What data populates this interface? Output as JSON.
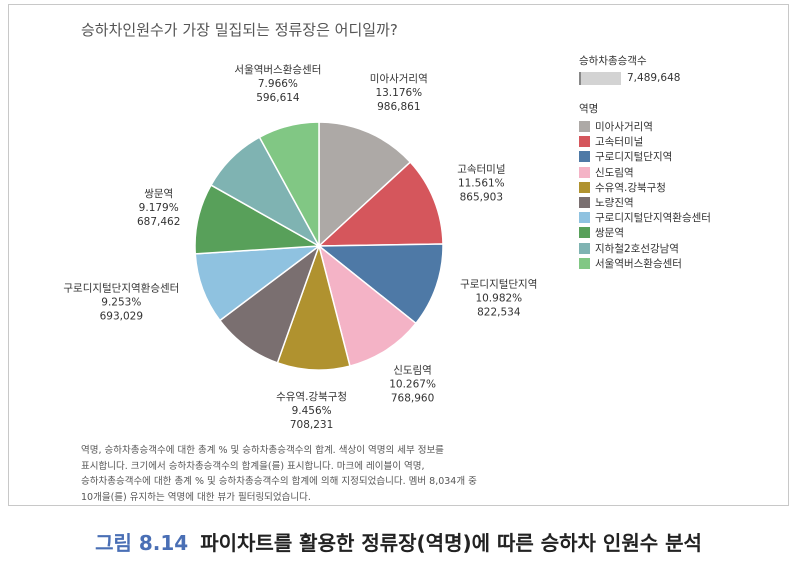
{
  "title": "승하차인원수가 가장 밀집되는 정류장은 어디일까?",
  "size_legend": {
    "title": "승하차총승객수",
    "value": "7,489,648"
  },
  "legend": {
    "title": "역명",
    "items": [
      {
        "label": "미아사거리역",
        "color": "#ada9a6"
      },
      {
        "label": "고속터미널",
        "color": "#d5565c"
      },
      {
        "label": "구로디지털단지역",
        "color": "#4e79a6"
      },
      {
        "label": "신도림역",
        "color": "#f4b3c6"
      },
      {
        "label": "수유역.강북구청",
        "color": "#b0922f"
      },
      {
        "label": "노량진역",
        "color": "#7a6f70"
      },
      {
        "label": "구로디지털단지역환승센터",
        "color": "#8fc2e0"
      },
      {
        "label": "쌍문역",
        "color": "#58a05a"
      },
      {
        "label": "지하철2호선강남역",
        "color": "#7fb3b2"
      },
      {
        "label": "서울역버스환승센터",
        "color": "#81c784"
      }
    ]
  },
  "chart_data": {
    "type": "pie",
    "slices": [
      {
        "name": "미아사거리역",
        "percent": "13.176%",
        "value": "986,861",
        "share": 13.176,
        "color": "#ada9a6"
      },
      {
        "name": "고속터미널",
        "percent": "11.561%",
        "value": "865,903",
        "share": 11.561,
        "color": "#d5565c"
      },
      {
        "name": "구로디지털단지역",
        "percent": "10.982%",
        "value": "822,534",
        "share": 10.982,
        "color": "#4e79a6"
      },
      {
        "name": "신도림역",
        "percent": "10.267%",
        "value": "768,960",
        "share": 10.267,
        "color": "#f4b3c6"
      },
      {
        "name": "수유역.강북구청",
        "percent": "9.456%",
        "value": "708,231",
        "share": 9.456,
        "color": "#b0922f"
      },
      {
        "name": "노량진역",
        "percent": "",
        "value": "",
        "share": 9.3,
        "color": "#7a6f70"
      },
      {
        "name": "구로디지털단지역환승센터",
        "percent": "9.253%",
        "value": "693,029",
        "share": 9.253,
        "color": "#8fc2e0"
      },
      {
        "name": "쌍문역",
        "percent": "9.179%",
        "value": "687,462",
        "share": 9.179,
        "color": "#58a05a"
      },
      {
        "name": "지하철2호선강남역",
        "percent": "",
        "value": "",
        "share": 8.86,
        "color": "#7fb3b2"
      },
      {
        "name": "서울역버스환승센터",
        "percent": "7.966%",
        "value": "596,614",
        "share": 7.966,
        "color": "#81c784"
      }
    ]
  },
  "note": [
    "역명, 승하차총승객수에 대한 총계 % 및 승하차총승객수의 합계. 색상이 역명의 세부 정보를",
    "표시합니다. 크기에서 승하차총승객수의 합계을(를) 표시합니다. 마크에 레이블이 역명,",
    "승하차총승객수에 대한 총계 % 및 승하차총승객수의 합계에 의해 지정되었습니다. 멤버 8,034개 중",
    "10개을(를) 유지하는 역명에 대한 뷰가 필터링되었습니다."
  ],
  "caption": {
    "number": "그림 8.14",
    "text": "파이차트를 활용한 정류장(역명)에 따른 승하차 인원수 분석"
  }
}
